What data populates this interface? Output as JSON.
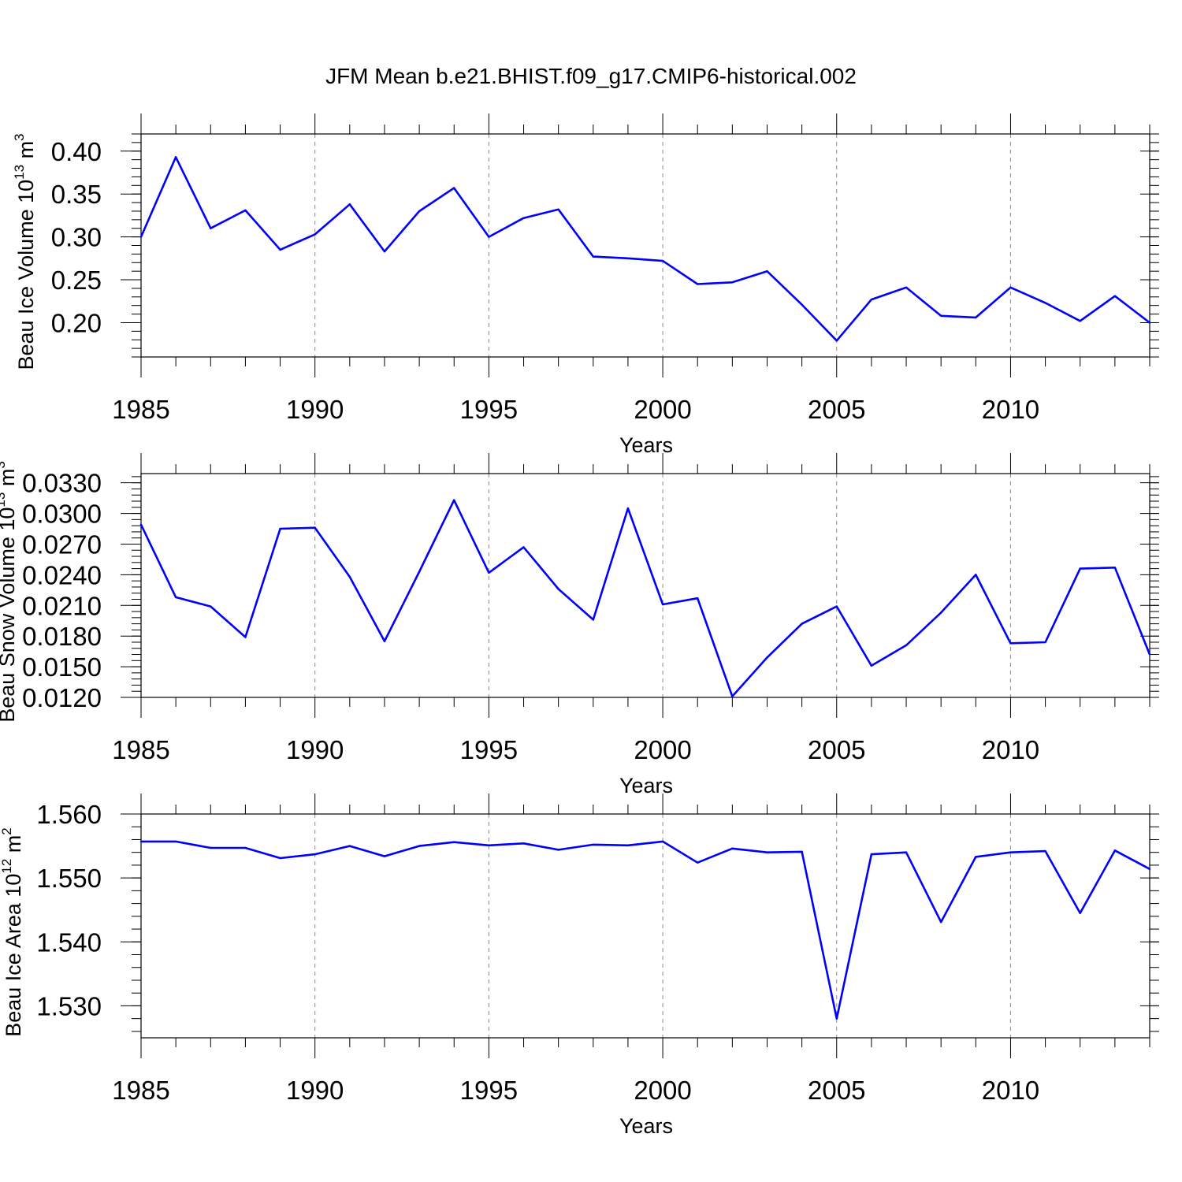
{
  "title": "JFM Mean b.e21.BHIST.f09_g17.CMIP6-historical.002",
  "line_color": "#0000ff",
  "chart_data": [
    {
      "type": "line",
      "ylabel_prefix": "Beau Ice Volume 10",
      "ylabel_exp": "13",
      "ylabel_unit": "m",
      "ylabel_unit_exp": "3",
      "xlabel": "Years",
      "xlim": [
        1985,
        2014
      ],
      "ylim": [
        0.16,
        0.42
      ],
      "yticks": [
        0.2,
        0.25,
        0.3,
        0.35,
        0.4
      ],
      "ytick_labels": [
        "0.20",
        "0.25",
        "0.30",
        "0.35",
        "0.40"
      ],
      "yminor_step": 0.01,
      "xticks": [
        1985,
        1990,
        1995,
        2000,
        2005,
        2010
      ],
      "xtick_labels": [
        "1985",
        "1990",
        "1995",
        "2000",
        "2005",
        "2010"
      ],
      "x": [
        1985,
        1986,
        1987,
        1988,
        1989,
        1990,
        1991,
        1992,
        1993,
        1994,
        1995,
        1996,
        1997,
        1998,
        1999,
        2000,
        2001,
        2002,
        2003,
        2004,
        2005,
        2006,
        2007,
        2008,
        2009,
        2010,
        2011,
        2012,
        2013,
        2014
      ],
      "values": [
        0.3,
        0.393,
        0.31,
        0.331,
        0.285,
        0.303,
        0.338,
        0.283,
        0.33,
        0.357,
        0.3,
        0.322,
        0.332,
        0.277,
        0.275,
        0.272,
        0.245,
        0.247,
        0.26,
        0.221,
        0.179,
        0.227,
        0.241,
        0.208,
        0.206,
        0.241,
        0.223,
        0.202,
        0.231,
        0.2
      ]
    },
    {
      "type": "line",
      "ylabel_prefix": "Beau Snow Volume 10",
      "ylabel_exp": "13",
      "ylabel_unit": "m",
      "ylabel_unit_exp": "3",
      "xlabel": "Years",
      "xlim": [
        1985,
        2014
      ],
      "ylim": [
        0.012,
        0.0339
      ],
      "yticks": [
        0.012,
        0.015,
        0.018,
        0.021,
        0.024,
        0.027,
        0.03,
        0.033
      ],
      "ytick_labels": [
        "0.0120",
        "0.0150",
        "0.0180",
        "0.0210",
        "0.0240",
        "0.0270",
        "0.0300",
        "0.0330"
      ],
      "yminor_step": 0.0006,
      "xticks": [
        1985,
        1990,
        1995,
        2000,
        2005,
        2010
      ],
      "xtick_labels": [
        "1985",
        "1990",
        "1995",
        "2000",
        "2005",
        "2010"
      ],
      "x": [
        1985,
        1986,
        1987,
        1988,
        1989,
        1990,
        1991,
        1992,
        1993,
        1994,
        1995,
        1996,
        1997,
        1998,
        1999,
        2000,
        2001,
        2002,
        2003,
        2004,
        2005,
        2006,
        2007,
        2008,
        2009,
        2010,
        2011,
        2012,
        2013,
        2014
      ],
      "values": [
        0.0289,
        0.0218,
        0.0209,
        0.0179,
        0.0285,
        0.0286,
        0.0238,
        0.0175,
        0.0243,
        0.0313,
        0.0242,
        0.0267,
        0.0226,
        0.0196,
        0.0305,
        0.0211,
        0.0217,
        0.0121,
        0.0159,
        0.0192,
        0.0209,
        0.0151,
        0.0171,
        0.0203,
        0.024,
        0.0173,
        0.0174,
        0.0246,
        0.0247,
        0.0162
      ]
    },
    {
      "type": "line",
      "ylabel_prefix": "Beau Ice Area 10",
      "ylabel_exp": "12",
      "ylabel_unit": "m",
      "ylabel_unit_exp": "2",
      "xlabel": "Years",
      "xlim": [
        1985,
        2014
      ],
      "ylim": [
        1.525,
        1.56
      ],
      "yticks": [
        1.53,
        1.54,
        1.55,
        1.56
      ],
      "ytick_labels": [
        "1.530",
        "1.540",
        "1.550",
        "1.560"
      ],
      "yminor_step": 0.002,
      "xticks": [
        1985,
        1990,
        1995,
        2000,
        2005,
        2010
      ],
      "xtick_labels": [
        "1985",
        "1990",
        "1995",
        "2000",
        "2005",
        "2010"
      ],
      "x": [
        1985,
        1986,
        1987,
        1988,
        1989,
        1990,
        1991,
        1992,
        1993,
        1994,
        1995,
        1996,
        1997,
        1998,
        1999,
        2000,
        2001,
        2002,
        2003,
        2004,
        2005,
        2006,
        2007,
        2008,
        2009,
        2010,
        2011,
        2012,
        2013,
        2014
      ],
      "values": [
        1.5557,
        1.5557,
        1.5547,
        1.5547,
        1.5531,
        1.5537,
        1.555,
        1.5534,
        1.555,
        1.5556,
        1.5551,
        1.5554,
        1.5544,
        1.5552,
        1.5551,
        1.5557,
        1.5524,
        1.5546,
        1.554,
        1.5541,
        1.528,
        1.5537,
        1.554,
        1.5431,
        1.5533,
        1.554,
        1.5542,
        1.5445,
        1.5543,
        1.5514
      ]
    }
  ]
}
